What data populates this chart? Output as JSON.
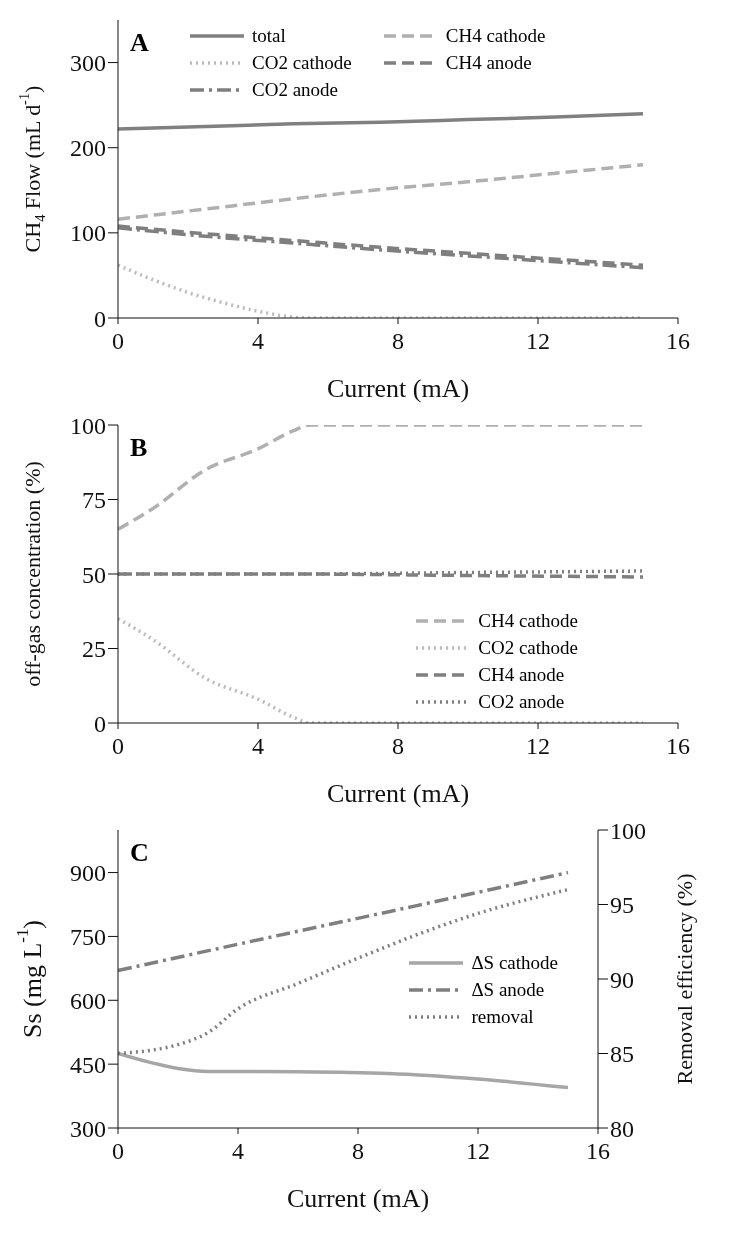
{
  "chart_data": [
    {
      "type": "line",
      "annotations": [
        "A"
      ],
      "xlabel": "Current (mA)",
      "ylabel": "CH$_{4}$ Flow (mL d$^{-1}$)",
      "xlim": [
        0,
        16
      ],
      "xticks": [
        0,
        4,
        8,
        12,
        16
      ],
      "ylim": [
        0,
        350
      ],
      "yticks": [
        0,
        100,
        200,
        300
      ],
      "legend": "top",
      "series": [
        {
          "name": "total",
          "color": "#808080",
          "line_style": "solid",
          "x": [
            0,
            2.5,
            5,
            7.5,
            10,
            12.5,
            15
          ],
          "values": [
            222,
            225,
            228,
            230,
            233,
            236,
            240
          ]
        },
        {
          "name": "CH4 cathode",
          "color": "#b0b0b0",
          "line_style": "dashed",
          "x": [
            0,
            2.5,
            5,
            7.5,
            10,
            12.5,
            15
          ],
          "values": [
            116,
            128,
            140,
            151,
            160,
            170,
            180
          ]
        },
        {
          "name": "CO2 cathode",
          "color": "#bbbbbb",
          "line_style": "dotted",
          "x": [
            0,
            1,
            2,
            3,
            4,
            5,
            5.5,
            15
          ],
          "values": [
            62,
            45,
            30,
            18,
            8,
            1,
            0,
            0
          ]
        },
        {
          "name": "CH4 anode",
          "color": "#7f7f7f",
          "line_style": "dashed",
          "x": [
            0,
            2.5,
            5,
            7.5,
            10,
            12.5,
            15
          ],
          "values": [
            108,
            99,
            91,
            83,
            76,
            69,
            62
          ]
        },
        {
          "name": "CO2 anode",
          "color": "#7f7f7f",
          "line_style": "dashdot",
          "x": [
            0,
            2.5,
            5,
            7.5,
            10,
            12.5,
            15
          ],
          "values": [
            106,
            96,
            88,
            80,
            73,
            66,
            59
          ]
        }
      ]
    },
    {
      "type": "line",
      "annotations": [
        "B"
      ],
      "xlabel": "Current (mA)",
      "ylabel": "off-gas concentration (%)",
      "xlim": [
        0,
        16
      ],
      "xticks": [
        0,
        4,
        8,
        12,
        16
      ],
      "ylim": [
        0,
        100
      ],
      "yticks": [
        0,
        25,
        50,
        75,
        100
      ],
      "legend": "bottom right",
      "series": [
        {
          "name": "CH4 cathode",
          "color": "#b0b0b0",
          "line_style": "dashed",
          "x": [
            0,
            1,
            2.5,
            4,
            5,
            5.5,
            15
          ],
          "values": [
            65,
            72,
            85,
            92,
            98,
            100,
            100
          ]
        },
        {
          "name": "CO2 cathode",
          "color": "#bbbbbb",
          "line_style": "dotted",
          "x": [
            0,
            1,
            2.5,
            4,
            5,
            5.5,
            15
          ],
          "values": [
            35,
            28,
            15,
            8,
            2,
            0,
            0
          ]
        },
        {
          "name": "CH4 anode",
          "color": "#7f7f7f",
          "line_style": "dashed",
          "x": [
            0,
            5,
            10,
            15
          ],
          "values": [
            50,
            50,
            49.5,
            49
          ]
        },
        {
          "name": "CO2 anode",
          "color": "#7f7f7f",
          "line_style": "dotted",
          "x": [
            0,
            5,
            10,
            15
          ],
          "values": [
            50,
            50,
            50.5,
            51
          ]
        }
      ]
    },
    {
      "type": "line",
      "annotations": [
        "C"
      ],
      "xlabel": "Current (mA)",
      "ylabel": "Ss (mg L$^{-1}$)",
      "y2label": "Removal efficiency (%)",
      "xlim": [
        0,
        16
      ],
      "xticks": [
        0,
        4,
        8,
        12,
        16
      ],
      "ylim": [
        300,
        1000
      ],
      "yticks": [
        300,
        450,
        600,
        750,
        900
      ],
      "y2lim": [
        80,
        100
      ],
      "y2ticks": [
        80,
        85,
        90,
        95,
        100
      ],
      "legend": "right",
      "series": [
        {
          "name": "ΔS cathode",
          "color": "#a6a6a6",
          "line_style": "solid",
          "x": [
            0,
            2,
            3,
            6,
            9,
            12,
            15
          ],
          "values": [
            475,
            440,
            433,
            432,
            428,
            415,
            395
          ]
        },
        {
          "name": "ΔS anode",
          "color": "#7f7f7f",
          "line_style": "dashdot",
          "x": [
            0,
            5,
            10,
            15
          ],
          "values": [
            670,
            747,
            823,
            900
          ]
        },
        {
          "name": "removal",
          "color": "#7f7f7f",
          "line_style": "dotted",
          "axis": "y2",
          "x": [
            0,
            2,
            3,
            4,
            6,
            8,
            10,
            12,
            15
          ],
          "values": [
            85,
            85.6,
            86.4,
            88,
            89.7,
            91.4,
            93,
            94.4,
            96
          ]
        }
      ]
    }
  ]
}
